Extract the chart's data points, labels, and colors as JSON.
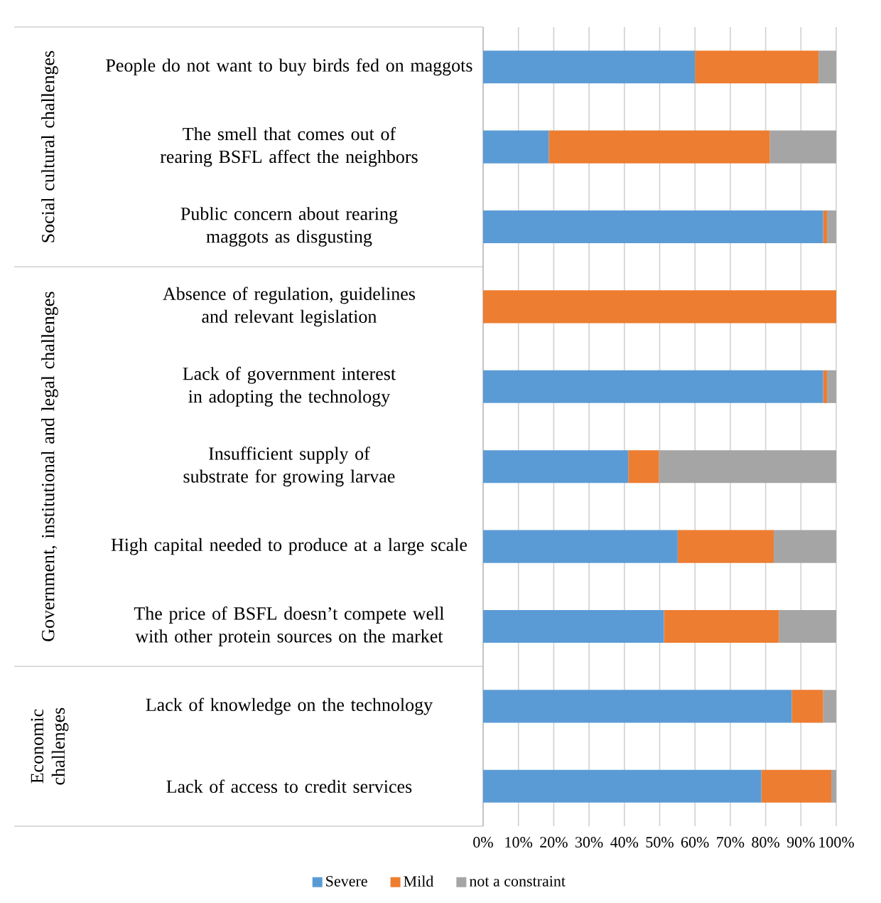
{
  "chart_data": {
    "type": "bar",
    "orientation": "horizontal",
    "stacked": true,
    "categories": [
      "People do not want to buy birds fed on maggots",
      "The smell that comes out of rearing BSFL affect the neighbors",
      "Public concern about rearing maggots as disgusting",
      "Absence of regulation, guidelines and relevant legislation",
      "Lack of government interest in adopting the technology",
      "Insufficient supply of substrate for growing larvae",
      "High capital needed to produce at a large scale",
      "The price of BSFL doesn’t compete well with other protein sources on the market",
      "Lack of knowledge on the technology",
      "Lack of access to credit services"
    ],
    "series": [
      {
        "name": "Severe",
        "color": "#5b9bd5",
        "values": [
          60,
          18.6,
          96.3,
          0,
          96.3,
          41.1,
          55.1,
          51.2,
          87.4,
          78.8
        ]
      },
      {
        "name": "Mild",
        "color": "#ed7d31",
        "values": [
          35,
          62.6,
          1.1,
          100,
          1.1,
          8.7,
          27.2,
          32.6,
          8.9,
          19.8
        ]
      },
      {
        "name": "not a constraint",
        "color": "#a5a5a5",
        "values": [
          5,
          18.8,
          2.6,
          0,
          2.6,
          50.2,
          17.7,
          16.2,
          3.7,
          1.4
        ]
      }
    ],
    "xlim": [
      0,
      100
    ],
    "xticks": [
      {
        "value": 0,
        "label": "0%"
      },
      {
        "value": 10,
        "label": "10%"
      },
      {
        "value": 20,
        "label": "20%"
      },
      {
        "value": 30,
        "label": "30%"
      },
      {
        "value": 40,
        "label": "40%"
      },
      {
        "value": 50,
        "label": "50%"
      },
      {
        "value": 60,
        "label": "60%"
      },
      {
        "value": 70,
        "label": "70%"
      },
      {
        "value": 80,
        "label": "80%"
      },
      {
        "value": 90,
        "label": "90%"
      },
      {
        "value": 100,
        "label": "100%"
      }
    ],
    "annotations": [
      "Social cultural challenges",
      "Government, institutional and legal challenges",
      "Economic challenges"
    ],
    "grid": "x",
    "legend": "bottom"
  }
}
